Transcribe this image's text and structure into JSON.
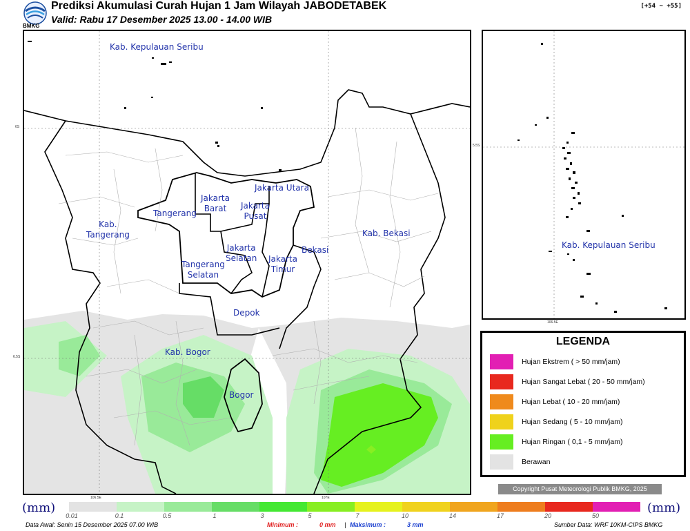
{
  "header": {
    "title": "Prediksi Akumulasi Curah Hujan 1 Jam Wilayah JABODETABEK",
    "subtitle": "Valid: Rabu 17 Desember 2025 13.00 - 14.00 WIB",
    "range": "[+54 ~ +55]",
    "logo_text": "BMKG"
  },
  "map": {
    "labels": {
      "kep_seribu": "Kab. Kepulauan Seribu",
      "jakarta_utara": "Jakarta Utara",
      "jakarta_barat": "Jakarta\nBarat",
      "jakarta_pusat": "Jakarta\nPusat",
      "tangerang": "Tangerang",
      "kab_tangerang": "Kab.\nTangerang",
      "kab_bekasi": "Kab. Bekasi",
      "bekasi": "Bekasi",
      "jakarta_selatan": "Jakarta\nSelatan",
      "jakarta_timur": "Jakarta\nTimur",
      "tangerang_selatan": "Tangerang\nSelatan",
      "depok": "Depok",
      "kab_bogor": "Kab. Bogor",
      "bogor": "Bogor"
    },
    "coords": {
      "lat1": "6S",
      "lat2": "6.5S",
      "lon1": "106.5E",
      "lon2": "107E"
    }
  },
  "inset": {
    "label": "Kab. Kepulauan Seribu",
    "lat": "5.5S",
    "lon": "106.5E"
  },
  "legend": {
    "title": "LEGENDA",
    "items": [
      {
        "label": "Hujan Ekstrem ( > 50 mm/jam)",
        "color": "#e21fb3"
      },
      {
        "label": "Hujan Sangat Lebat ( 20 - 50 mm/jam)",
        "color": "#e8281e"
      },
      {
        "label": "Hujan Lebat ( 10 - 20 mm/jam)",
        "color": "#ef8a1c"
      },
      {
        "label": "Hujan Sedang ( 5 - 10 mm/jam)",
        "color": "#efd21c"
      },
      {
        "label": "Hujan Ringan ( 0,1 - 5 mm/jam)",
        "color": "#66ee22"
      },
      {
        "label": "Berawan",
        "color": "#e3e3e3"
      }
    ]
  },
  "copyright": "Copyright Pusat Meteorologi Publik BMKG, 2025",
  "scale": {
    "unit": "(mm)",
    "ticks": [
      "0.01",
      "0.1",
      "0.5",
      "1",
      "3",
      "5",
      "7",
      "10",
      "14",
      "17",
      "20",
      "50"
    ],
    "colors": [
      "#e3e3e3",
      "#c6f3c6",
      "#99ea99",
      "#66dd66",
      "#44e833",
      "#88ee22",
      "#e6f21e",
      "#f0d21e",
      "#f0a51e",
      "#ee7d1e",
      "#e8281e",
      "#e21fb3"
    ]
  },
  "footer": {
    "data_awal": "Data Awal: Senin 15 Desember 2025 07.00 WIB",
    "minimum_label": "Minimum :",
    "minimum_value": "0 mm",
    "separator": "|",
    "maksimum_label": "Maksimum :",
    "maksimum_value": "3 mm",
    "source": "Sumber Data: WRF 10KM-CIPS BMKG"
  }
}
